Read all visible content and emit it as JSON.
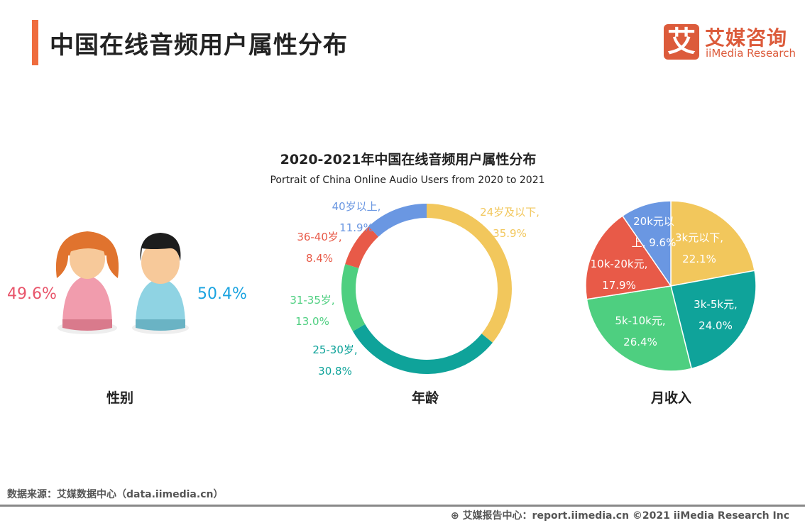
{
  "header": {
    "title": "中国在线音频用户属性分布",
    "logo_mark": "艾",
    "logo_cn": "艾媒咨询",
    "logo_en": "iiMedia Research"
  },
  "chart_title": "2020-2021年中国在线音频用户属性分布",
  "chart_subtitle": "Portrait of China Online Audio Users from 2020 to 2021",
  "colors": {
    "yellow": "#f2c75c",
    "teal": "#0fa39a",
    "green": "#4ecf80",
    "red": "#e85a48",
    "blue": "#6a97e2",
    "female": "#e8546a",
    "male": "#1aa3e0",
    "accent": "#ef6c3e"
  },
  "chart_data": [
    {
      "type": "pictogram",
      "section": "性别",
      "categories": [
        "女",
        "男"
      ],
      "values": [
        49.6,
        50.4
      ],
      "labels": [
        "49.6%",
        "50.4%"
      ]
    },
    {
      "type": "donut",
      "section": "年龄",
      "categories": [
        "24岁及以下",
        "25-30岁",
        "31-35岁",
        "36-40岁",
        "40岁以上"
      ],
      "values": [
        35.9,
        30.8,
        13.0,
        8.4,
        11.9
      ],
      "labels": [
        [
          "24岁及以下,",
          "35.9%"
        ],
        [
          "25-30岁,",
          "30.8%"
        ],
        [
          "31-35岁,",
          "13.0%"
        ],
        [
          "36-40岁,",
          "8.4%"
        ],
        [
          "40岁以上,",
          "11.9%"
        ]
      ],
      "colors": [
        "#f2c75c",
        "#0fa39a",
        "#4ecf80",
        "#e85a48",
        "#6a97e2"
      ]
    },
    {
      "type": "pie",
      "section": "月收入",
      "categories": [
        "3k元以下",
        "3k-5k元",
        "5k-10k元",
        "10k-20k元",
        "20k元以上"
      ],
      "values": [
        22.1,
        24.0,
        26.4,
        17.9,
        9.6
      ],
      "labels": [
        [
          "3k元以下,",
          "22.1%"
        ],
        [
          "3k-5k元,",
          "24.0%"
        ],
        [
          "5k-10k元,",
          "26.4%"
        ],
        [
          "10k-20k元,",
          "17.9%"
        ],
        [
          "20k元以",
          "上, 9.6%"
        ]
      ],
      "colors": [
        "#f2c75c",
        "#0fa39a",
        "#4ecf80",
        "#e85a48",
        "#6a97e2"
      ]
    }
  ],
  "footer": {
    "source": "数据来源：艾媒数据中心（data.iimedia.cn）",
    "copyright": "艾媒报告中心：report.iimedia.cn ©2021  iiMedia Research  Inc"
  }
}
